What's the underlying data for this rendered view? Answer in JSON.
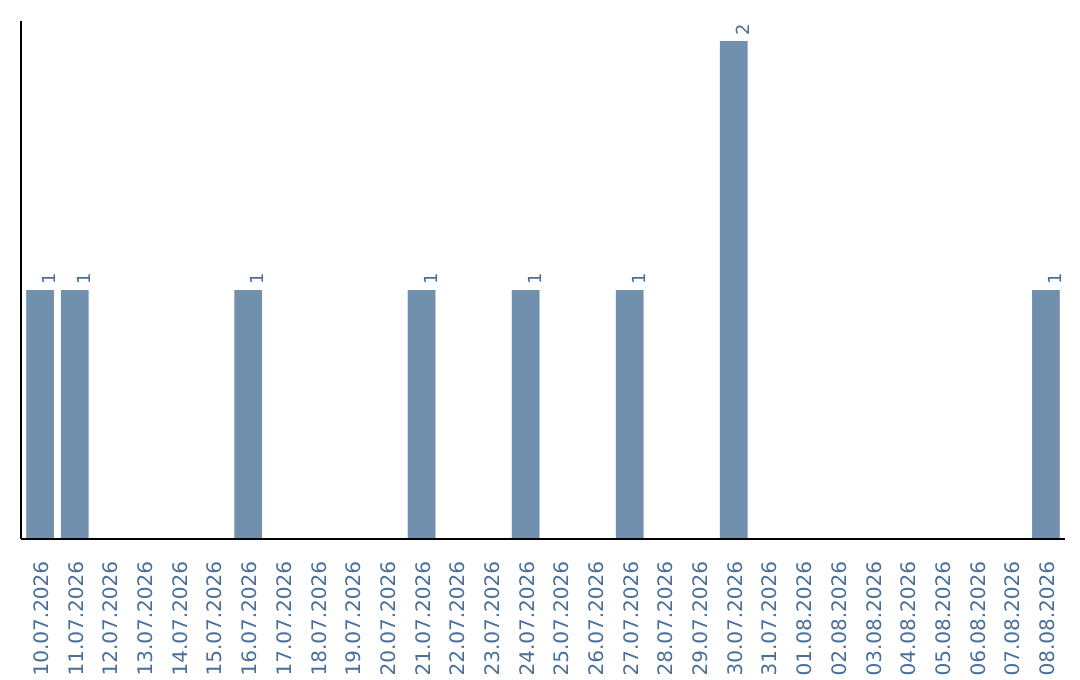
{
  "chart_data": {
    "type": "bar",
    "color": "#7090ae",
    "categories": [
      "10.07.2026",
      "11.07.2026",
      "12.07.2026",
      "13.07.2026",
      "14.07.2026",
      "15.07.2026",
      "16.07.2026",
      "17.07.2026",
      "18.07.2026",
      "19.07.2026",
      "20.07.2026",
      "21.07.2026",
      "22.07.2026",
      "23.07.2026",
      "24.07.2026",
      "25.07.2026",
      "26.07.2026",
      "27.07.2026",
      "28.07.2026",
      "29.07.2026",
      "30.07.2026",
      "31.07.2026",
      "01.08.2026",
      "02.08.2026",
      "03.08.2026",
      "04.08.2026",
      "05.08.2026",
      "06.08.2026",
      "07.08.2026",
      "08.08.2026"
    ],
    "values": [
      1,
      1,
      0,
      0,
      0,
      0,
      1,
      0,
      0,
      0,
      0,
      1,
      0,
      0,
      1,
      0,
      0,
      1,
      0,
      0,
      2,
      0,
      0,
      0,
      0,
      0,
      0,
      0,
      0,
      1
    ],
    "value_labels": [
      "1",
      "1",
      null,
      null,
      null,
      null,
      "1",
      null,
      null,
      null,
      null,
      "1",
      null,
      null,
      "1",
      null,
      null,
      "1",
      null,
      null,
      "2",
      null,
      null,
      null,
      null,
      null,
      null,
      null,
      null,
      "1"
    ],
    "grid": false
  }
}
